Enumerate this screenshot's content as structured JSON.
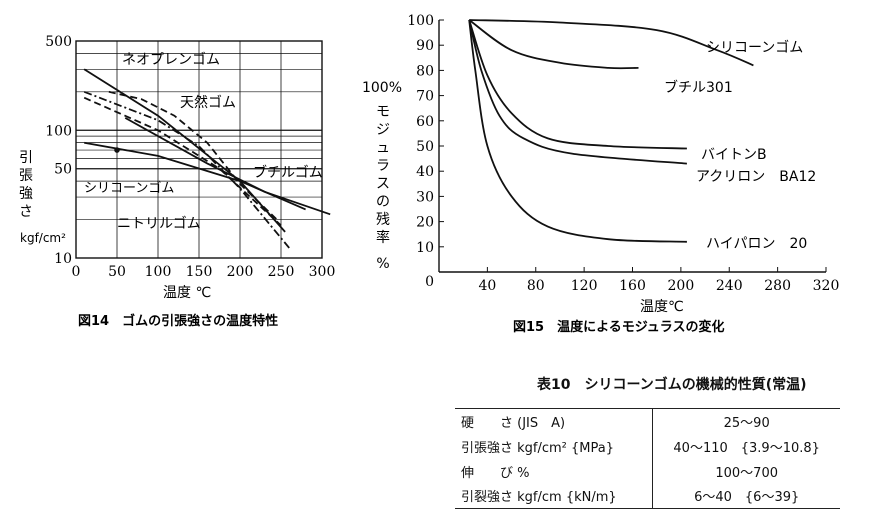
{
  "chart_data": [
    {
      "type": "line",
      "title": "図14　ゴムの引張強さの温度特性",
      "xlabel": "温度 ℃",
      "ylabel": [
        "引",
        "張",
        "強",
        "さ"
      ],
      "yunit": "kgf/cm²",
      "xlim": [
        0,
        300
      ],
      "ylim": [
        10,
        500
      ],
      "yscale": "log",
      "x_ticks": [
        "0",
        "50",
        "100",
        "150",
        "200",
        "250",
        "300"
      ],
      "y_ticks": [
        {
          "v": 500,
          "t": "500"
        },
        {
          "v": 100,
          "t": "100"
        },
        {
          "v": 50,
          "t": "50"
        },
        {
          "v": 10,
          "t": "10"
        }
      ],
      "series": [
        {
          "name": "ネオプレンゴム",
          "style": "dashdot",
          "points": [
            [
              10,
              200
            ],
            [
              100,
              120
            ],
            [
              150,
              75
            ],
            [
              200,
              35
            ],
            [
              260,
              12
            ]
          ]
        },
        {
          "name": "天然ゴム",
          "style": "dash",
          "points": [
            [
              40,
              200
            ],
            [
              80,
              175
            ],
            [
              120,
              130
            ],
            [
              160,
              80
            ],
            [
              200,
              38
            ],
            [
              245,
              20
            ]
          ]
        },
        {
          "name": "ブチルゴム",
          "style": "solid",
          "points": [
            [
              10,
              300
            ],
            [
              100,
              130
            ],
            [
              200,
              40
            ],
            [
              255,
              16
            ]
          ]
        },
        {
          "name": "シリコーンゴム",
          "style": "solid",
          "points": [
            [
              10,
              80
            ],
            [
              100,
              63
            ],
            [
              200,
              40
            ],
            [
              280,
              24
            ]
          ]
        },
        {
          "name": "ニトリルゴム",
          "style": "dash",
          "points": [
            [
              10,
              180
            ],
            [
              100,
              100
            ],
            [
              175,
              50
            ],
            [
              250,
              18
            ]
          ]
        },
        {
          "name": "",
          "style": "solid",
          "points": [
            [
              60,
              125
            ],
            [
              160,
              55
            ],
            [
              230,
              33
            ],
            [
              310,
              22
            ]
          ]
        }
      ]
    },
    {
      "type": "line",
      "title": "図15　温度によるモジュラスの変化",
      "xlabel": "温度℃",
      "ylabel": [
        "100%",
        "モ",
        "ジ",
        "ュ",
        "ラ",
        "ス",
        "の",
        "残",
        "率",
        "%"
      ],
      "xlim": [
        0,
        320
      ],
      "ylim": [
        0,
        100
      ],
      "x_ticks": [
        "40",
        "80",
        "120",
        "160",
        "200",
        "240",
        "280",
        "320"
      ],
      "x_origin": "0",
      "y_ticks": [
        "10",
        "20",
        "30",
        "40",
        "50",
        "60",
        "70",
        "80",
        "90",
        "100"
      ],
      "series": [
        {
          "name": "シリコーンゴム",
          "points": [
            [
              25,
              100
            ],
            [
              100,
              99
            ],
            [
              180,
              96
            ],
            [
              230,
              88
            ],
            [
              260,
              82
            ]
          ]
        },
        {
          "name": "ブチル301",
          "points": [
            [
              25,
              100
            ],
            [
              60,
              88
            ],
            [
              100,
              83
            ],
            [
              140,
              81
            ],
            [
              165,
              81
            ]
          ]
        },
        {
          "name": "バイトンB",
          "points": [
            [
              25,
              100
            ],
            [
              40,
              78
            ],
            [
              60,
              63
            ],
            [
              90,
              53
            ],
            [
              140,
              50
            ],
            [
              205,
              49
            ]
          ]
        },
        {
          "name": "アクリロン　BA12",
          "points": [
            [
              25,
              100
            ],
            [
              35,
              80
            ],
            [
              50,
              62
            ],
            [
              70,
              53
            ],
            [
              110,
              47
            ],
            [
              205,
              43
            ]
          ]
        },
        {
          "name": "ハイパロン　20",
          "points": [
            [
              25,
              100
            ],
            [
              30,
              80
            ],
            [
              40,
              50
            ],
            [
              60,
              30
            ],
            [
              90,
              18
            ],
            [
              140,
              13
            ],
            [
              205,
              12
            ]
          ]
        }
      ]
    }
  ],
  "table": {
    "title": "表10　シリコーンゴムの機械的性質(常温)",
    "rows": [
      {
        "label": "硬　　さ (JIS　A)",
        "value": "25～90"
      },
      {
        "label": "引張強さ  kgf/cm²  {MPa}",
        "value": "40～110　{3.9～10.8}"
      },
      {
        "label": "伸　　び  %",
        "value": "100～700"
      },
      {
        "label": "引裂強さ  kgf/cm {kN/m}",
        "value": "6～40　{6～39}"
      }
    ]
  }
}
